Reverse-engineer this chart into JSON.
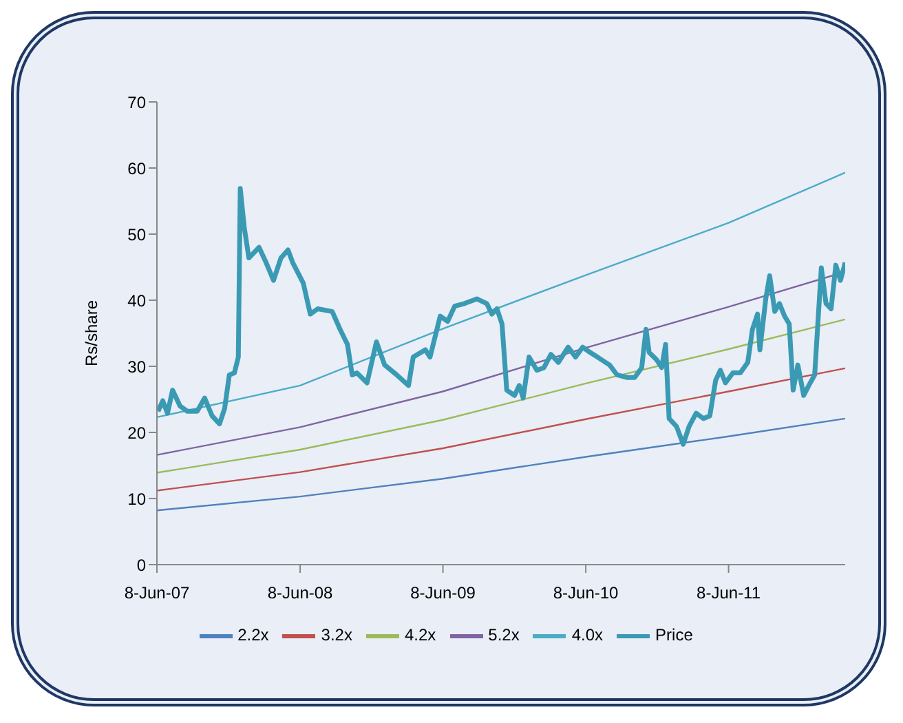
{
  "chart_data": {
    "type": "line",
    "ylabel": "Rs/share",
    "xlim": [
      "2007-06-08",
      "2012-04-01"
    ],
    "xticks": [
      {
        "value": "2007-06-08",
        "label": "8-Jun-07"
      },
      {
        "value": "2008-06-08",
        "label": "8-Jun-08"
      },
      {
        "value": "2009-06-08",
        "label": "8-Jun-09"
      },
      {
        "value": "2010-06-08",
        "label": "8-Jun-10"
      },
      {
        "value": "2011-06-08",
        "label": "8-Jun-11"
      }
    ],
    "ylim": [
      0,
      70
    ],
    "yticks": [
      0,
      10,
      20,
      30,
      40,
      50,
      60,
      70
    ],
    "legend": "bottom",
    "marker": "none",
    "line_style": "solid",
    "series": [
      {
        "name": "2.2x",
        "color": "#4f81bd",
        "x": [
          "2007-06-08",
          "2008-06-08",
          "2009-06-08",
          "2010-06-08",
          "2011-06-08",
          "2012-04-01"
        ],
        "values": [
          8.2,
          10.3,
          13.0,
          16.3,
          19.4,
          22.1
        ]
      },
      {
        "name": "3.2x",
        "color": "#c0504d",
        "x": [
          "2007-06-08",
          "2008-06-08",
          "2009-06-08",
          "2010-06-08",
          "2011-06-08",
          "2012-04-01"
        ],
        "values": [
          11.2,
          14.0,
          17.6,
          22.0,
          26.2,
          29.7
        ]
      },
      {
        "name": "4.2x",
        "color": "#9bbb59",
        "x": [
          "2007-06-08",
          "2008-06-08",
          "2009-06-08",
          "2010-06-08",
          "2011-06-08",
          "2012-04-01"
        ],
        "values": [
          13.9,
          17.4,
          21.9,
          27.4,
          32.6,
          37.1
        ]
      },
      {
        "name": "5.2x",
        "color": "#8064a2",
        "x": [
          "2007-06-08",
          "2008-06-08",
          "2009-06-08",
          "2010-06-08",
          "2011-06-08",
          "2012-04-01"
        ],
        "values": [
          16.6,
          20.8,
          26.2,
          32.8,
          39.0,
          44.3
        ]
      },
      {
        "name": "4.0x",
        "color": "#4bacc6",
        "x": [
          "2007-06-08",
          "2008-06-08",
          "2009-06-08",
          "2010-06-08",
          "2011-06-08",
          "2012-04-01"
        ],
        "values": [
          22.3,
          27.1,
          35.7,
          43.8,
          51.7,
          59.3
        ]
      },
      {
        "name": "Price",
        "color": "#3a9ab3",
        "x": [
          "2007-06-11",
          "2007-06-23",
          "2007-07-05",
          "2007-07-18",
          "2007-08-06",
          "2007-08-25",
          "2007-09-19",
          "2007-10-08",
          "2007-10-27",
          "2007-11-15",
          "2007-11-28",
          "2007-12-10",
          "2007-12-23",
          "2008-01-02",
          "2008-01-07",
          "2008-01-17",
          "2008-01-29",
          "2008-02-24",
          "2008-03-13",
          "2008-04-01",
          "2008-04-20",
          "2008-05-08",
          "2008-05-20",
          "2008-06-16",
          "2008-07-04",
          "2008-07-23",
          "2008-08-29",
          "2008-09-18",
          "2008-10-07",
          "2008-10-19",
          "2008-10-31",
          "2008-11-26",
          "2008-12-20",
          "2009-01-10",
          "2009-02-10",
          "2009-03-12",
          "2009-03-24",
          "2009-04-24",
          "2009-05-06",
          "2009-06-01",
          "2009-06-20",
          "2009-07-08",
          "2009-08-02",
          "2009-09-03",
          "2009-09-28",
          "2009-10-11",
          "2009-10-24",
          "2009-11-06",
          "2009-11-18",
          "2009-12-08",
          "2009-12-20",
          "2009-12-30",
          "2010-01-14",
          "2010-02-03",
          "2010-02-21",
          "2010-03-11",
          "2010-03-30",
          "2010-04-24",
          "2010-05-13",
          "2010-05-31",
          "2010-06-19",
          "2010-07-08",
          "2010-08-08",
          "2010-08-27",
          "2010-09-22",
          "2010-10-11",
          "2010-10-29",
          "2010-11-09",
          "2010-11-17",
          "2010-12-06",
          "2010-12-19",
          "2010-12-29",
          "2011-01-07",
          "2011-01-26",
          "2011-02-12",
          "2011-02-27",
          "2011-03-17",
          "2011-04-05",
          "2011-04-21",
          "2011-05-06",
          "2011-05-18",
          "2011-05-31",
          "2011-06-19",
          "2011-07-08",
          "2011-07-27",
          "2011-08-08",
          "2011-08-21",
          "2011-08-27",
          "2011-09-11",
          "2011-09-21",
          "2011-10-04",
          "2011-10-16",
          "2011-10-29",
          "2011-11-10",
          "2011-11-20",
          "2011-12-02",
          "2011-12-17",
          "2011-12-30",
          "2012-01-14",
          "2012-01-31",
          "2012-02-12",
          "2012-02-25",
          "2012-03-08",
          "2012-03-20",
          "2012-04-01"
        ],
        "values": [
          23.2,
          24.8,
          22.9,
          26.4,
          24.0,
          23.2,
          23.2,
          25.2,
          22.5,
          21.3,
          23.6,
          28.7,
          29.0,
          31.4,
          56.9,
          51.1,
          46.4,
          48.0,
          45.7,
          43.0,
          46.4,
          47.6,
          45.7,
          42.6,
          37.9,
          38.7,
          38.3,
          35.6,
          33.3,
          28.7,
          29.0,
          27.5,
          33.7,
          30.2,
          28.7,
          27.1,
          31.4,
          32.5,
          31.4,
          37.6,
          36.8,
          39.1,
          39.5,
          40.2,
          39.5,
          37.9,
          38.7,
          36.4,
          26.4,
          25.6,
          27.1,
          25.2,
          31.4,
          29.4,
          29.8,
          31.8,
          30.6,
          32.9,
          31.4,
          32.9,
          32.1,
          31.4,
          30.2,
          28.7,
          28.3,
          28.3,
          29.8,
          35.6,
          32.1,
          31.0,
          29.8,
          33.3,
          22.1,
          20.9,
          18.2,
          20.9,
          22.9,
          22.1,
          22.5,
          27.9,
          29.4,
          27.5,
          29.0,
          29.0,
          30.6,
          35.6,
          37.9,
          32.5,
          40.2,
          43.7,
          38.3,
          39.5,
          37.6,
          36.4,
          26.4,
          30.2,
          25.6,
          27.1,
          28.7,
          44.9,
          39.5,
          38.7,
          45.3,
          43.0,
          45.7
        ]
      }
    ]
  }
}
